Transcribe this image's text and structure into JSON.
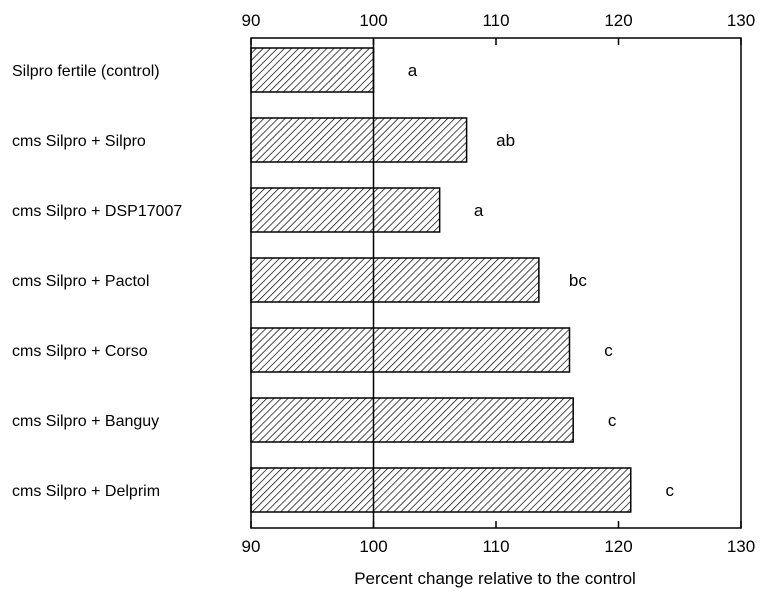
{
  "chart_data": {
    "type": "bar",
    "orientation": "horizontal",
    "categories": [
      "Silpro fertile (control)",
      "cms Silpro + Silpro",
      "cms Silpro + DSP17007",
      "cms Silpro + Pactol",
      "cms Silpro + Corso",
      "cms Silpro + Banguy",
      "cms Silpro + Delprim"
    ],
    "values": [
      100,
      107.6,
      105.4,
      113.5,
      116,
      116.3,
      121
    ],
    "significance": [
      "a",
      "ab",
      "a",
      "bc",
      "c",
      "c",
      "c"
    ],
    "xlim": [
      90,
      130
    ],
    "xticks": [
      90,
      100,
      110,
      120,
      130
    ],
    "reference_line": 100,
    "xlabel": "Percent change relative to the control",
    "title": "",
    "ylabel": "",
    "bar_fill": "diagonal-hatch",
    "colors": {
      "bar_stroke": "#000000",
      "hatch": "#000000",
      "background": "#ffffff"
    }
  }
}
